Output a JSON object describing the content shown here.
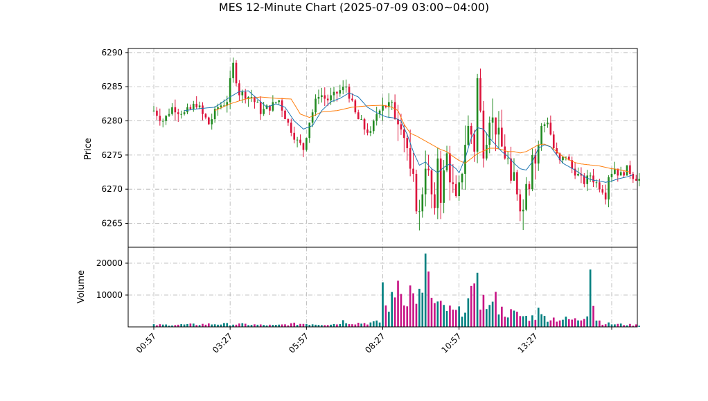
{
  "chart_data": {
    "type": "candlestick",
    "title": "MES 12-Minute Chart (2025-07-09 03:00~04:00)",
    "price_axis": {
      "label": "Price",
      "ylim": [
        6261.5,
        6290.6
      ],
      "ticks": [
        6265,
        6270,
        6275,
        6280,
        6285,
        6290
      ]
    },
    "volume_axis": {
      "label": "Volume",
      "ylim": [
        0,
        25000
      ],
      "ticks": [
        10000,
        20000
      ]
    },
    "x_axis": {
      "tick_labels": [
        "00:57",
        "03:27",
        "05:57",
        "08:27",
        "10:57",
        "13:27",
        ""
      ],
      "tick_index": [
        0,
        25,
        50,
        75,
        100,
        125,
        150
      ],
      "xlim": [
        -8.4,
        158.4
      ]
    },
    "grid": true,
    "colors": {
      "up": "#228B22",
      "down": "#DC143C",
      "ma_fast": "#1f77b4",
      "ma_slow": "#ff7f0e",
      "vol_up": "#008080",
      "vol_down": "#c71585",
      "grid": "#b0b0b0"
    },
    "series_anchors": {
      "close_path": [
        [
          0,
          6281.5
        ],
        [
          3,
          6280
        ],
        [
          6,
          6282
        ],
        [
          10,
          6281
        ],
        [
          14,
          6282.5
        ],
        [
          18,
          6279.5
        ],
        [
          21,
          6282
        ],
        [
          24,
          6283
        ],
        [
          26,
          6288.2
        ],
        [
          28,
          6284
        ],
        [
          32,
          6283.5
        ],
        [
          35,
          6281.5
        ],
        [
          38,
          6282
        ],
        [
          41,
          6283
        ],
        [
          44,
          6279.5
        ],
        [
          47,
          6277
        ],
        [
          49,
          6276
        ],
        [
          51,
          6280
        ],
        [
          54,
          6284
        ],
        [
          57,
          6283
        ],
        [
          60,
          6284
        ],
        [
          63,
          6285
        ],
        [
          66,
          6281
        ],
        [
          69,
          6279
        ],
        [
          71,
          6278
        ],
        [
          73,
          6281
        ],
        [
          75,
          6283
        ],
        [
          77,
          6282
        ],
        [
          79,
          6281
        ],
        [
          81,
          6280
        ],
        [
          83,
          6276
        ],
        [
          84,
          6272
        ],
        [
          85,
          6271
        ],
        [
          86,
          6268
        ],
        [
          87,
          6266
        ],
        [
          88,
          6270
        ],
        [
          89,
          6274
        ],
        [
          90,
          6272
        ],
        [
          91,
          6269
        ],
        [
          92,
          6266
        ],
        [
          93,
          6275
        ],
        [
          94,
          6269
        ],
        [
          95,
          6272
        ],
        [
          96,
          6275
        ],
        [
          97,
          6272
        ],
        [
          98,
          6270
        ],
        [
          99,
          6268
        ],
        [
          100,
          6270
        ],
        [
          101,
          6273
        ],
        [
          102,
          6277
        ],
        [
          103,
          6279
        ],
        [
          104,
          6278
        ],
        [
          105,
          6276
        ],
        [
          106,
          6286
        ],
        [
          107,
          6281
        ],
        [
          108,
          6276
        ],
        [
          109,
          6278
        ],
        [
          110,
          6281
        ],
        [
          112,
          6279
        ],
        [
          114,
          6276
        ],
        [
          116,
          6274
        ],
        [
          117,
          6270
        ],
        [
          118,
          6272
        ],
        [
          119,
          6270
        ],
        [
          120,
          6268
        ],
        [
          121,
          6267
        ],
        [
          122,
          6272
        ],
        [
          123,
          6271
        ],
        [
          124,
          6276
        ],
        [
          125,
          6274
        ],
        [
          127,
          6279
        ],
        [
          129,
          6280
        ],
        [
          131,
          6276
        ],
        [
          133,
          6274
        ],
        [
          135,
          6275
        ],
        [
          137,
          6273
        ],
        [
          139,
          6272
        ],
        [
          141,
          6271
        ],
        [
          143,
          6272
        ],
        [
          145,
          6271
        ],
        [
          147,
          6270
        ],
        [
          148,
          6269
        ],
        [
          149,
          6272
        ],
        [
          151,
          6273
        ],
        [
          153,
          6272
        ],
        [
          155,
          6273
        ],
        [
          157,
          6272
        ],
        [
          159,
          6271.5
        ]
      ],
      "ma_fast": [
        [
          10,
          6281.5
        ],
        [
          15,
          6281.8
        ],
        [
          20,
          6282
        ],
        [
          25,
          6283.5
        ],
        [
          28,
          6284.3
        ],
        [
          31,
          6284.4
        ],
        [
          34,
          6283.2
        ],
        [
          37,
          6282
        ],
        [
          40,
          6282.5
        ],
        [
          43,
          6282
        ],
        [
          46,
          6280
        ],
        [
          49,
          6278.8
        ],
        [
          52,
          6279.3
        ],
        [
          55,
          6281.5
        ],
        [
          58,
          6282.8
        ],
        [
          61,
          6283.3
        ],
        [
          64,
          6284.1
        ],
        [
          67,
          6283.5
        ],
        [
          70,
          6282
        ],
        [
          73,
          6281.2
        ],
        [
          76,
          6280.6
        ],
        [
          79,
          6280.4
        ],
        [
          81,
          6280
        ],
        [
          83,
          6278
        ],
        [
          85,
          6275.5
        ],
        [
          87,
          6273.5
        ],
        [
          89,
          6274
        ],
        [
          91,
          6273
        ],
        [
          93,
          6272.4
        ],
        [
          95,
          6273.2
        ],
        [
          97,
          6273.7
        ],
        [
          99,
          6273
        ],
        [
          100,
          6272.4
        ],
        [
          102,
          6274.5
        ],
        [
          104,
          6277.5
        ],
        [
          106,
          6279
        ],
        [
          108,
          6278.8
        ],
        [
          110,
          6277.5
        ],
        [
          112,
          6276.5
        ],
        [
          114,
          6275.5
        ],
        [
          116,
          6274.8
        ],
        [
          118,
          6273.8
        ],
        [
          120,
          6273
        ],
        [
          122,
          6272.8
        ],
        [
          124,
          6274
        ],
        [
          126,
          6276
        ],
        [
          128,
          6276.5
        ],
        [
          130,
          6276.2
        ],
        [
          132,
          6275
        ],
        [
          134,
          6273.8
        ],
        [
          136,
          6273.3
        ],
        [
          138,
          6272.8
        ],
        [
          140,
          6272.2
        ],
        [
          142,
          6271.6
        ],
        [
          144,
          6271.3
        ],
        [
          146,
          6271.2
        ],
        [
          148,
          6271
        ],
        [
          150,
          6271.2
        ],
        [
          152,
          6271.5
        ],
        [
          155,
          6271.8
        ],
        [
          157,
          6272.1
        ]
      ],
      "ma_slow": [
        [
          20,
          6281.5
        ],
        [
          25,
          6282.5
        ],
        [
          30,
          6283.2
        ],
        [
          35,
          6283.5
        ],
        [
          40,
          6283.3
        ],
        [
          45,
          6283.2
        ],
        [
          48,
          6281
        ],
        [
          51,
          6280.5
        ],
        [
          55,
          6281.3
        ],
        [
          60,
          6281.5
        ],
        [
          65,
          6282
        ],
        [
          70,
          6282.2
        ],
        [
          75,
          6282.3
        ],
        [
          78,
          6282
        ],
        [
          80,
          6281.5
        ],
        [
          82,
          6279.5
        ],
        [
          84,
          6278.2
        ],
        [
          86,
          6277.8
        ],
        [
          88,
          6277.3
        ],
        [
          90,
          6276.8
        ],
        [
          92,
          6276.3
        ],
        [
          94,
          6275.8
        ],
        [
          96,
          6275.5
        ],
        [
          98,
          6274.8
        ],
        [
          100,
          6274.2
        ],
        [
          102,
          6273.8
        ],
        [
          104,
          6274.5
        ],
        [
          106,
          6275.2
        ],
        [
          108,
          6275.6
        ],
        [
          110,
          6276
        ],
        [
          112,
          6276
        ],
        [
          114,
          6275.8
        ],
        [
          116,
          6275.5
        ],
        [
          118,
          6275.5
        ],
        [
          120,
          6275.3
        ],
        [
          122,
          6275.5
        ],
        [
          124,
          6276
        ],
        [
          126,
          6276.5
        ],
        [
          128,
          6276.6
        ],
        [
          130,
          6276.2
        ],
        [
          132,
          6275.5
        ],
        [
          134,
          6274.8
        ],
        [
          136,
          6274.3
        ],
        [
          138,
          6273.9
        ],
        [
          140,
          6273.7
        ],
        [
          142,
          6273.6
        ],
        [
          144,
          6273.5
        ],
        [
          146,
          6273.4
        ],
        [
          148,
          6273.2
        ],
        [
          150,
          6273
        ],
        [
          152,
          6272.9
        ],
        [
          154,
          6272.7
        ],
        [
          156,
          6272.5
        ]
      ],
      "volume_path": [
        [
          0,
          600
        ],
        [
          10,
          700
        ],
        [
          20,
          900
        ],
        [
          30,
          800
        ],
        [
          35,
          600
        ],
        [
          40,
          500
        ],
        [
          45,
          900
        ],
        [
          50,
          1000
        ],
        [
          55,
          800
        ],
        [
          60,
          900
        ],
        [
          62,
          1800
        ],
        [
          65,
          1200
        ],
        [
          70,
          1200
        ],
        [
          74,
          1500
        ],
        [
          75,
          10000
        ],
        [
          76,
          6000
        ],
        [
          78,
          8000
        ],
        [
          80,
          10000
        ],
        [
          82,
          11000
        ],
        [
          84,
          8500
        ],
        [
          86,
          10000
        ],
        [
          88,
          9000
        ],
        [
          89,
          12000
        ],
        [
          90,
          20000
        ],
        [
          91,
          8000
        ],
        [
          92,
          7000
        ],
        [
          94,
          6000
        ],
        [
          96,
          5500
        ],
        [
          98,
          4500
        ],
        [
          100,
          4500
        ],
        [
          102,
          7000
        ],
        [
          104,
          9000
        ],
        [
          106,
          10000
        ],
        [
          108,
          8000
        ],
        [
          110,
          6000
        ],
        [
          112,
          5500
        ],
        [
          114,
          5000
        ],
        [
          116,
          4500
        ],
        [
          118,
          4000
        ],
        [
          120,
          3500
        ],
        [
          122,
          3000
        ],
        [
          124,
          3000
        ],
        [
          126,
          3200
        ],
        [
          128,
          3000
        ],
        [
          130,
          2800
        ],
        [
          132,
          2500
        ],
        [
          134,
          2400
        ],
        [
          136,
          2300
        ],
        [
          138,
          2200
        ],
        [
          140,
          2500
        ],
        [
          142,
          5000
        ],
        [
          143,
          12000
        ],
        [
          145,
          2500
        ],
        [
          147,
          1200
        ],
        [
          150,
          900
        ],
        [
          155,
          700
        ],
        [
          157,
          600
        ]
      ],
      "volume_spikes": [
        [
          75,
          14000
        ],
        [
          80,
          14500
        ],
        [
          84,
          13000
        ],
        [
          89,
          23000
        ],
        [
          106,
          17000
        ],
        [
          112,
          11000
        ],
        [
          126,
          6000
        ],
        [
          143,
          18000
        ]
      ]
    }
  }
}
